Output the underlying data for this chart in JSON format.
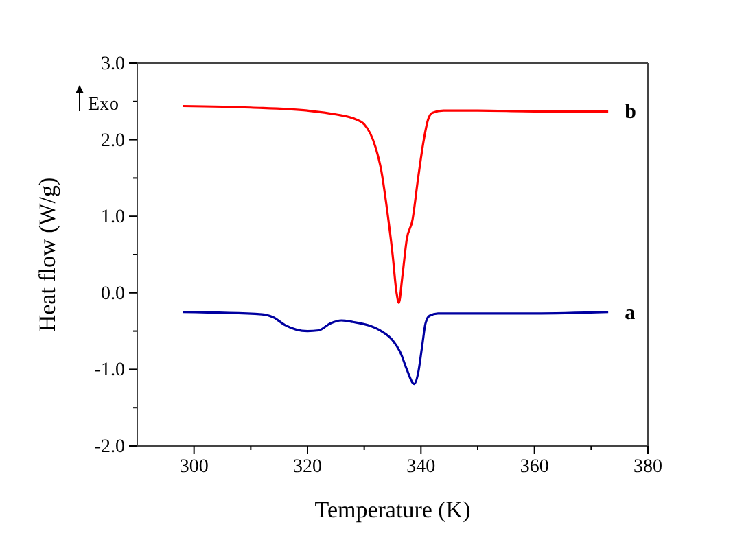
{
  "chart_data": {
    "type": "line",
    "xlabel": "Temperature (K)",
    "ylabel": "Heat flow (W/g)",
    "xlim": [
      290,
      380
    ],
    "ylim": [
      -2,
      3
    ],
    "xticks": [
      300,
      {
        "value": 310,
        "label": null
      },
      320,
      {
        "value": 330,
        "label": null
      },
      340,
      {
        "value": 350,
        "label": null
      },
      360,
      {
        "value": 370,
        "label": null
      },
      380
    ],
    "yticks": [
      {
        "value": -2,
        "label": "-2.0"
      },
      {
        "value": -1.5,
        "label": null
      },
      {
        "value": -1,
        "label": "-1.0"
      },
      {
        "value": -0.5,
        "label": null
      },
      {
        "value": 0,
        "label": "0.0"
      },
      {
        "value": 0.5,
        "label": null
      },
      {
        "value": 1,
        "label": "1.0"
      },
      {
        "value": 1.5,
        "label": null
      },
      {
        "value": 2,
        "label": "2.0"
      },
      {
        "value": 2.5,
        "label": null
      },
      {
        "value": 3,
        "label": "3.0"
      }
    ],
    "grid": false,
    "annotations": [
      "Exo"
    ],
    "series": [
      {
        "name": "b",
        "color": "#ff0000",
        "x": [
          298,
          310,
          320,
          325,
          328,
          330,
          332,
          333,
          334,
          335,
          335.7,
          336.1,
          336.7,
          337.5,
          338.5,
          339.5,
          340.5,
          341.2,
          342,
          344,
          350,
          360,
          373
        ],
        "values": [
          2.44,
          2.42,
          2.38,
          2.33,
          2.28,
          2.2,
          1.9,
          1.6,
          1.1,
          0.5,
          0.0,
          -0.13,
          0.2,
          0.7,
          0.95,
          1.5,
          2.0,
          2.25,
          2.35,
          2.38,
          2.38,
          2.37,
          2.37
        ]
      },
      {
        "name": "a",
        "color": "#0000a0",
        "x": [
          298,
          312,
          314,
          316,
          318,
          320,
          322,
          324,
          326,
          328,
          331,
          333,
          335,
          336.5,
          337.5,
          338.8,
          339.5,
          340.2,
          340.8,
          341.5,
          343,
          350,
          360,
          373
        ],
        "values": [
          -0.25,
          -0.28,
          -0.32,
          -0.42,
          -0.48,
          -0.5,
          -0.49,
          -0.4,
          -0.36,
          -0.38,
          -0.43,
          -0.5,
          -0.62,
          -0.8,
          -1.0,
          -1.19,
          -1.05,
          -0.7,
          -0.4,
          -0.3,
          -0.27,
          -0.27,
          -0.27,
          -0.25
        ]
      }
    ]
  }
}
